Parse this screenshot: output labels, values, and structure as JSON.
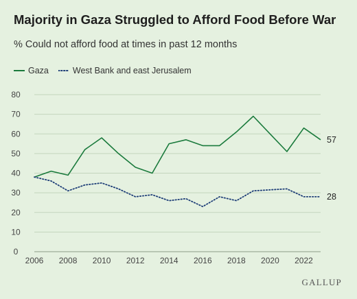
{
  "title": "Majority in Gaza Struggled to Afford Food Before War",
  "subtitle": "% Could not afford food at times in past 12 months",
  "brand": "GALLUP",
  "colors": {
    "gaza": "#1a7a3c",
    "westbank": "#1f3f78",
    "grid": "#c3d5bd",
    "background": "#e5f1e0"
  },
  "chart_data": {
    "type": "line",
    "title": "Majority in Gaza Struggled to Afford Food Before War",
    "subtitle": "% Could not afford food at times in past 12 months",
    "xlabel": "",
    "ylabel": "",
    "ylim": [
      0,
      80
    ],
    "xlim": [
      2006,
      2023
    ],
    "yticks": [
      0,
      10,
      20,
      30,
      40,
      50,
      60,
      70,
      80
    ],
    "xticks": [
      2006,
      2008,
      2010,
      2012,
      2014,
      2016,
      2018,
      2020,
      2022
    ],
    "grid": true,
    "legend": "top-left",
    "series": [
      {
        "name": "Gaza",
        "style": "solid",
        "end_label": "57",
        "points": [
          [
            2006,
            38
          ],
          [
            2007,
            41
          ],
          [
            2008,
            39
          ],
          [
            2009,
            52
          ],
          [
            2010,
            58
          ],
          [
            2011,
            50
          ],
          [
            2012,
            43
          ],
          [
            2013,
            40
          ],
          [
            2014,
            55
          ],
          [
            2015,
            57
          ],
          [
            2016,
            54
          ],
          [
            2017,
            54
          ],
          [
            2018,
            61
          ],
          [
            2019,
            69
          ],
          [
            2020,
            60
          ],
          [
            2021,
            51
          ],
          [
            2022,
            63
          ],
          [
            2023,
            57
          ]
        ]
      },
      {
        "name": "West Bank and east Jerusalem",
        "style": "dotted",
        "end_label": "28",
        "points": [
          [
            2006,
            38
          ],
          [
            2007,
            36
          ],
          [
            2008,
            31
          ],
          [
            2009,
            34
          ],
          [
            2010,
            35
          ],
          [
            2011,
            32
          ],
          [
            2012,
            28
          ],
          [
            2013,
            29
          ],
          [
            2014,
            26
          ],
          [
            2015,
            27
          ],
          [
            2016,
            23
          ],
          [
            2017,
            28
          ],
          [
            2018,
            26
          ],
          [
            2019,
            31
          ],
          [
            2020,
            31.5
          ],
          [
            2021,
            32
          ],
          [
            2022,
            28
          ],
          [
            2023,
            28
          ]
        ]
      }
    ]
  }
}
